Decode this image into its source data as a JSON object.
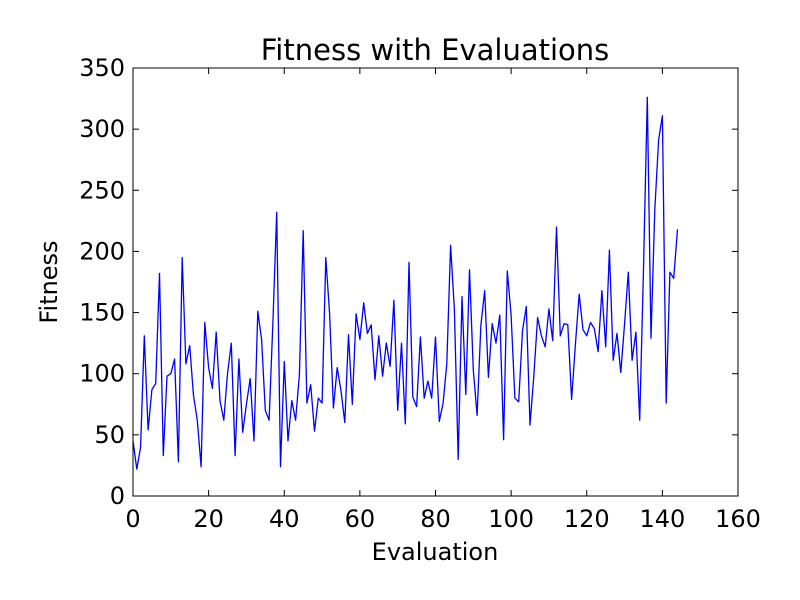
{
  "chart_data": {
    "type": "line",
    "title": "Fitness with Evaluations",
    "xlabel": "Evaluation",
    "ylabel": "Fitness",
    "xlim": [
      0,
      160
    ],
    "ylim": [
      0,
      350
    ],
    "xticks": [
      0,
      20,
      40,
      60,
      80,
      100,
      120,
      140,
      160
    ],
    "yticks": [
      0,
      50,
      100,
      150,
      200,
      250,
      300,
      350
    ],
    "grid": false,
    "series": [
      {
        "color": "#0000ff",
        "x": [
          0,
          1,
          2,
          3,
          4,
          5,
          6,
          7,
          8,
          9,
          10,
          11,
          12,
          13,
          14,
          15,
          16,
          17,
          18,
          19,
          20,
          21,
          22,
          23,
          24,
          25,
          26,
          27,
          28,
          29,
          30,
          31,
          32,
          33,
          34,
          35,
          36,
          37,
          38,
          39,
          40,
          41,
          42,
          43,
          44,
          45,
          46,
          47,
          48,
          49,
          50,
          51,
          52,
          53,
          54,
          55,
          56,
          57,
          58,
          59,
          60,
          61,
          62,
          63,
          64,
          65,
          66,
          67,
          68,
          69,
          70,
          71,
          72,
          73,
          74,
          75,
          76,
          77,
          78,
          79,
          80,
          81,
          82,
          83,
          84,
          85,
          86,
          87,
          88,
          89,
          90,
          91,
          92,
          93,
          94,
          95,
          96,
          97,
          98,
          99,
          100,
          101,
          102,
          103,
          104,
          105,
          106,
          107,
          108,
          109,
          110,
          111,
          112,
          113,
          114,
          115,
          116,
          117,
          118,
          119,
          120,
          121,
          122,
          123,
          124,
          125,
          126,
          127,
          128,
          129,
          130,
          131,
          132,
          133,
          134,
          135,
          136,
          137,
          138,
          139,
          140,
          141,
          142,
          143,
          144
        ],
        "y": [
          45,
          22,
          40,
          131,
          54,
          87,
          92,
          182,
          33,
          98,
          100,
          112,
          28,
          195,
          108,
          123,
          82,
          62,
          24,
          142,
          105,
          88,
          134,
          78,
          62,
          100,
          125,
          33,
          112,
          52,
          75,
          96,
          45,
          151,
          128,
          70,
          62,
          142,
          232,
          24,
          110,
          45,
          78,
          62,
          99,
          217,
          76,
          91,
          53,
          80,
          76,
          195,
          149,
          72,
          105,
          86,
          60,
          132,
          75,
          149,
          128,
          158,
          133,
          140,
          95,
          131,
          98,
          125,
          106,
          160,
          70,
          125,
          59,
          191,
          81,
          73,
          130,
          80,
          94,
          80,
          130,
          61,
          76,
          108,
          205,
          152,
          30,
          163,
          83,
          185,
          103,
          66,
          140,
          168,
          97,
          141,
          125,
          148,
          46,
          184,
          148,
          80,
          77,
          135,
          155,
          58,
          98,
          146,
          131,
          122,
          153,
          127,
          220,
          131,
          141,
          140,
          79,
          124,
          165,
          136,
          131,
          142,
          137,
          118,
          168,
          122,
          201,
          111,
          133,
          101,
          141,
          183,
          111,
          134,
          62,
          186,
          326,
          129,
          234,
          291,
          311,
          76,
          183,
          178,
          218
        ]
      }
    ]
  }
}
